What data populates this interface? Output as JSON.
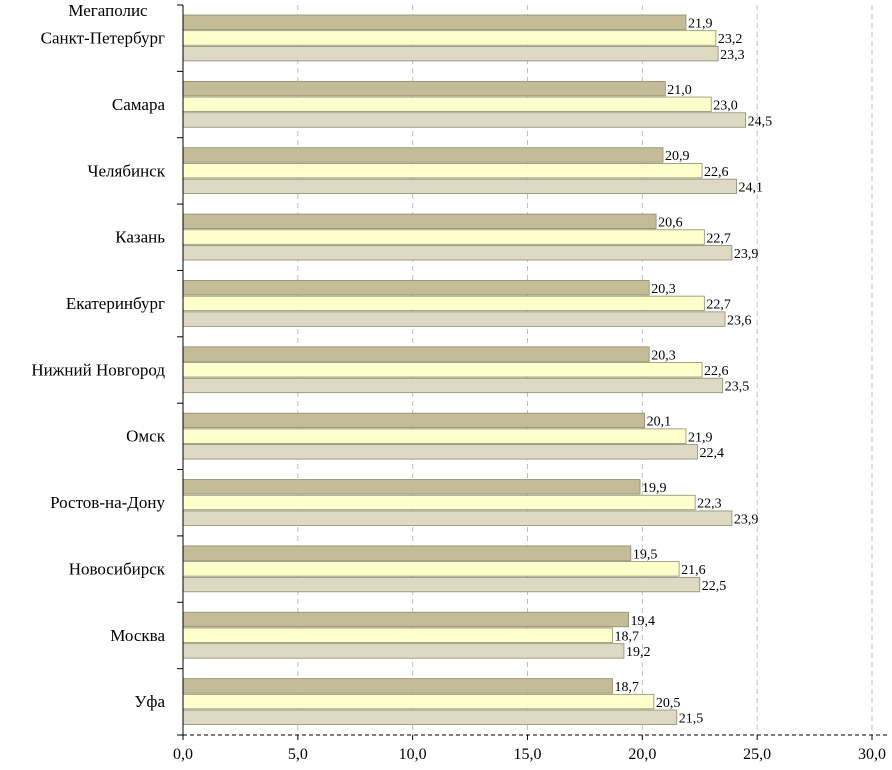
{
  "chart_data": {
    "type": "bar",
    "orientation": "horizontal",
    "category_axis_title": "Мегаполис",
    "categories": [
      "Санкт-Петербург",
      "Самара",
      "Челябинск",
      "Казань",
      "Екатеринбург",
      "Нижний Новгород",
      "Омск",
      "Ростов-на-Дону",
      "Новосибирск",
      "Москва",
      "Уфа"
    ],
    "series": [
      {
        "color": "#c4bc96",
        "values": [
          21.9,
          21.0,
          20.9,
          20.6,
          20.3,
          20.3,
          20.1,
          19.9,
          19.5,
          19.4,
          18.7
        ],
        "labels": [
          "21,9",
          "21,0",
          "20,9",
          "20,6",
          "20,3",
          "20,3",
          "20,1",
          "19,9",
          "19,5",
          "19,4",
          "18,7"
        ]
      },
      {
        "color": "#ffffcc",
        "values": [
          23.2,
          23.0,
          22.6,
          22.7,
          22.7,
          22.6,
          21.9,
          22.3,
          21.6,
          18.7,
          20.5
        ],
        "labels": [
          "23,2",
          "23,0",
          "22,6",
          "22,7",
          "22,7",
          "22,6",
          "21,9",
          "22,3",
          "21,6",
          "18,7",
          "20,5"
        ]
      },
      {
        "color": "#ddd9c3",
        "values": [
          23.3,
          24.5,
          24.1,
          23.9,
          23.6,
          23.5,
          22.4,
          23.9,
          22.5,
          19.2,
          21.5
        ],
        "labels": [
          "23,3",
          "24,5",
          "24,1",
          "23,9",
          "23,6",
          "23,5",
          "22,4",
          "23,9",
          "22,5",
          "19,2",
          "21,5"
        ]
      }
    ],
    "xlim": [
      0,
      30
    ],
    "x_ticks": [
      0,
      5,
      10,
      15,
      20,
      25,
      30
    ],
    "x_tick_labels": [
      "0,0",
      "5,0",
      "10,0",
      "15,0",
      "20,0",
      "25,0",
      "30,0"
    ],
    "grid": "vertical-dashed",
    "legend": "none"
  }
}
